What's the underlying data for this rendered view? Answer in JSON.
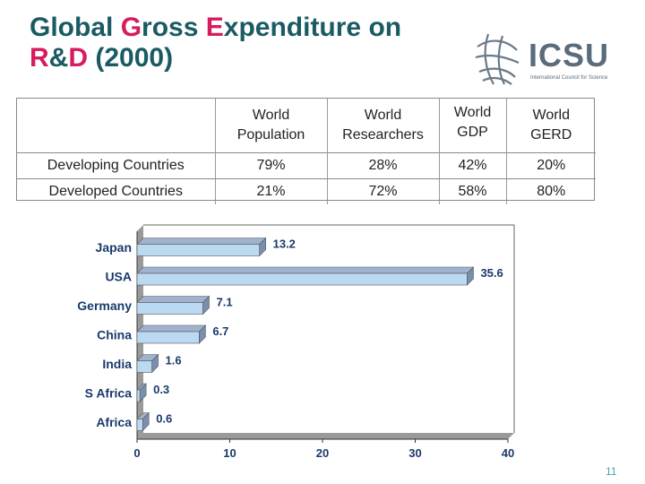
{
  "title": {
    "line1_pre": "Global ",
    "g": "G",
    "line1_mid": "ross ",
    "e": "E",
    "line1_post": "xpenditure on",
    "r": "R",
    "amp": "&",
    "d": "D",
    "line2_post": " (2000)"
  },
  "logo": {
    "text": "ICSU",
    "subtitle": "International Council for Science"
  },
  "table": {
    "headers": [
      {
        "line1": "World",
        "line2": "Population"
      },
      {
        "line1": "World",
        "line2": "Researchers"
      },
      {
        "line1": "World",
        "line2": "GDP"
      },
      {
        "line1": "World",
        "line2": "GERD"
      }
    ],
    "rows": [
      {
        "label": "Developing Countries",
        "values": [
          "79%",
          "28%",
          "42%",
          "20%"
        ]
      },
      {
        "label": "Developed Countries",
        "values": [
          "21%",
          "72%",
          "58%",
          "80%"
        ]
      }
    ]
  },
  "chart_data": {
    "type": "bar",
    "orientation": "horizontal",
    "categories": [
      "Japan",
      "USA",
      "Germany",
      "China",
      "India",
      "S Africa",
      "Africa"
    ],
    "values": [
      13.2,
      35.6,
      7.1,
      6.7,
      1.6,
      0.3,
      0.6
    ],
    "data_labels": [
      "13.2",
      "35.6",
      "7.1",
      "6.7",
      "1.6",
      "0.3",
      "0.6"
    ],
    "xlim": [
      0,
      40
    ],
    "xticks": [
      "0",
      "10",
      "20",
      "30",
      "40"
    ],
    "grid": false,
    "bar_color": "#bcd9f2"
  },
  "page_number": "11"
}
